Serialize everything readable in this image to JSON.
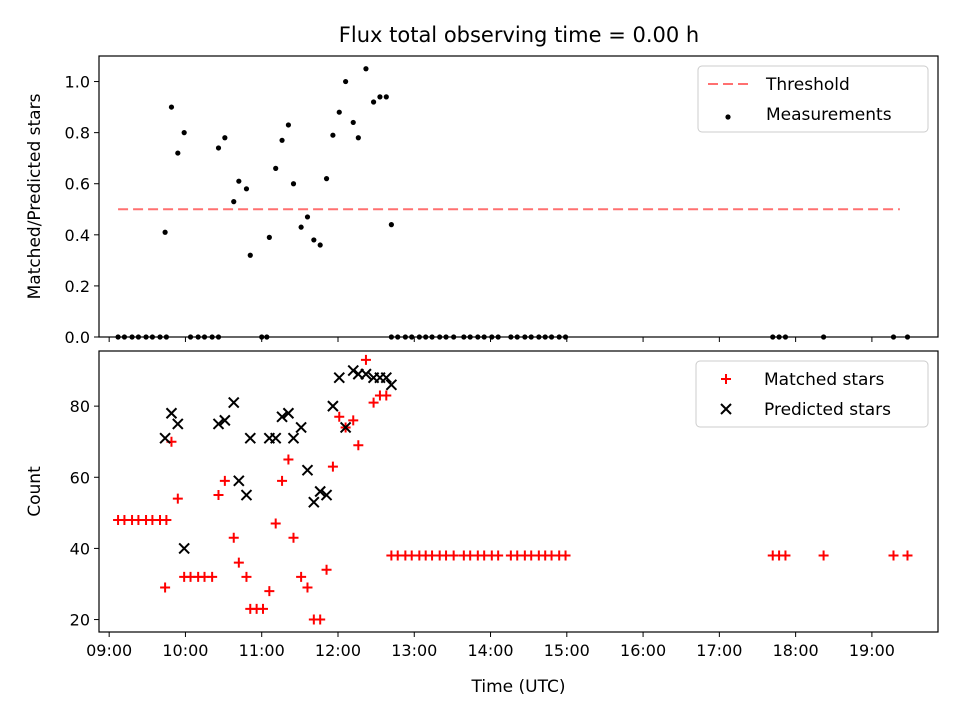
{
  "chart_data": [
    {
      "type": "scatter",
      "title": "Flux total observing time = 0.00 h",
      "xlabel": "",
      "ylabel": "Matched/Predicted stars",
      "xlim": [
        "08:52",
        "19:52"
      ],
      "ylim": [
        0,
        1.1
      ],
      "yticks": [
        "0.0",
        "0.2",
        "0.4",
        "0.6",
        "0.8",
        "1.0"
      ],
      "xtick_labels_visible": false,
      "grid": false,
      "legend_position": "top-right",
      "legend": [
        {
          "label": "Threshold",
          "marker": "dashed-line",
          "color": "#ff7070"
        },
        {
          "label": "Measurements",
          "marker": "dot",
          "color": "#000000"
        }
      ],
      "threshold": {
        "name": "Threshold",
        "value": 0.5,
        "x_start": "09:07",
        "x_end": "19:22",
        "color": "#ff7070",
        "style": "dashed"
      },
      "series": [
        {
          "name": "Measurements",
          "color": "#000000",
          "points": [
            [
              "09:07",
              0
            ],
            [
              "09:12",
              0
            ],
            [
              "09:18",
              0
            ],
            [
              "09:23",
              0
            ],
            [
              "09:29",
              0
            ],
            [
              "09:34",
              0
            ],
            [
              "09:40",
              0
            ],
            [
              "09:45",
              0
            ],
            [
              "09:44",
              0.41
            ],
            [
              "09:49",
              0.9
            ],
            [
              "09:54",
              0.72
            ],
            [
              "09:59",
              0.8
            ],
            [
              "10:04",
              0
            ],
            [
              "10:10",
              0
            ],
            [
              "10:15",
              0
            ],
            [
              "10:21",
              0
            ],
            [
              "10:26",
              0
            ],
            [
              "10:26",
              0.74
            ],
            [
              "10:31",
              0.78
            ],
            [
              "10:38",
              0.53
            ],
            [
              "10:42",
              0.61
            ],
            [
              "10:48",
              0.58
            ],
            [
              "10:51",
              0.32
            ],
            [
              "11:00",
              0
            ],
            [
              "11:04",
              0
            ],
            [
              "11:06",
              0.39
            ],
            [
              "11:11",
              0.66
            ],
            [
              "11:16",
              0.77
            ],
            [
              "11:21",
              0.83
            ],
            [
              "11:25",
              0.6
            ],
            [
              "11:31",
              0.43
            ],
            [
              "11:36",
              0.47
            ],
            [
              "11:41",
              0.38
            ],
            [
              "11:46",
              0.36
            ],
            [
              "11:51",
              0.62
            ],
            [
              "11:56",
              0.79
            ],
            [
              "12:01",
              0.88
            ],
            [
              "12:06",
              1.0
            ],
            [
              "12:12",
              0.84
            ],
            [
              "12:16",
              0.78
            ],
            [
              "12:22",
              1.05
            ],
            [
              "12:28",
              0.92
            ],
            [
              "12:33",
              0.94
            ],
            [
              "12:38",
              0.94
            ],
            [
              "12:42",
              0.44
            ],
            [
              "12:42",
              0
            ],
            [
              "12:47",
              0
            ],
            [
              "12:53",
              0
            ],
            [
              "12:58",
              0
            ],
            [
              "13:04",
              0
            ],
            [
              "13:09",
              0
            ],
            [
              "13:14",
              0
            ],
            [
              "13:20",
              0
            ],
            [
              "13:25",
              0
            ],
            [
              "13:31",
              0
            ],
            [
              "13:39",
              0
            ],
            [
              "13:44",
              0
            ],
            [
              "13:50",
              0
            ],
            [
              "13:55",
              0
            ],
            [
              "14:01",
              0
            ],
            [
              "14:06",
              0
            ],
            [
              "14:16",
              0
            ],
            [
              "14:21",
              0
            ],
            [
              "14:27",
              0
            ],
            [
              "14:32",
              0
            ],
            [
              "14:38",
              0
            ],
            [
              "14:43",
              0
            ],
            [
              "14:48",
              0
            ],
            [
              "14:54",
              0
            ],
            [
              "14:59",
              0
            ],
            [
              "17:42",
              0
            ],
            [
              "17:47",
              0
            ],
            [
              "17:52",
              0
            ],
            [
              "18:22",
              0
            ],
            [
              "19:17",
              0
            ],
            [
              "19:28",
              0
            ]
          ]
        }
      ]
    },
    {
      "type": "scatter",
      "title": "",
      "xlabel": "Time (UTC)",
      "ylabel": "Count",
      "xlim": [
        "08:52",
        "19:52"
      ],
      "ylim": [
        16.5,
        95.5
      ],
      "xticks": [
        "09:00",
        "10:00",
        "11:00",
        "12:00",
        "13:00",
        "14:00",
        "15:00",
        "16:00",
        "17:00",
        "18:00",
        "19:00"
      ],
      "yticks": [
        "20",
        "40",
        "60",
        "80"
      ],
      "grid": false,
      "legend_position": "top-right",
      "legend": [
        {
          "label": "Matched stars",
          "marker": "plus",
          "color": "#ff0000"
        },
        {
          "label": "Predicted stars",
          "marker": "x",
          "color": "#000000"
        }
      ],
      "series": [
        {
          "name": "Matched stars",
          "color": "#ff0000",
          "marker": "plus",
          "points": [
            [
              "09:07",
              48
            ],
            [
              "09:12",
              48
            ],
            [
              "09:18",
              48
            ],
            [
              "09:23",
              48
            ],
            [
              "09:29",
              48
            ],
            [
              "09:34",
              48
            ],
            [
              "09:40",
              48
            ],
            [
              "09:45",
              48
            ],
            [
              "09:44",
              29
            ],
            [
              "09:49",
              70
            ],
            [
              "09:54",
              54
            ],
            [
              "09:59",
              32
            ],
            [
              "10:04",
              32
            ],
            [
              "10:10",
              32
            ],
            [
              "10:15",
              32
            ],
            [
              "10:21",
              32
            ],
            [
              "10:26",
              55
            ],
            [
              "10:31",
              59
            ],
            [
              "10:38",
              43
            ],
            [
              "10:42",
              36
            ],
            [
              "10:48",
              32
            ],
            [
              "10:51",
              23
            ],
            [
              "10:56",
              23
            ],
            [
              "11:01",
              23
            ],
            [
              "11:06",
              28
            ],
            [
              "11:11",
              47
            ],
            [
              "11:16",
              59
            ],
            [
              "11:21",
              65
            ],
            [
              "11:25",
              43
            ],
            [
              "11:31",
              32
            ],
            [
              "11:36",
              29
            ],
            [
              "11:41",
              20
            ],
            [
              "11:46",
              20
            ],
            [
              "11:51",
              34
            ],
            [
              "11:56",
              63
            ],
            [
              "12:01",
              77
            ],
            [
              "12:06",
              74
            ],
            [
              "12:12",
              76
            ],
            [
              "12:16",
              69
            ],
            [
              "12:22",
              93
            ],
            [
              "12:28",
              81
            ],
            [
              "12:33",
              83
            ],
            [
              "12:38",
              83
            ],
            [
              "12:42",
              38
            ],
            [
              "12:47",
              38
            ],
            [
              "12:53",
              38
            ],
            [
              "12:58",
              38
            ],
            [
              "13:04",
              38
            ],
            [
              "13:09",
              38
            ],
            [
              "13:14",
              38
            ],
            [
              "13:20",
              38
            ],
            [
              "13:25",
              38
            ],
            [
              "13:31",
              38
            ],
            [
              "13:39",
              38
            ],
            [
              "13:44",
              38
            ],
            [
              "13:50",
              38
            ],
            [
              "13:55",
              38
            ],
            [
              "14:01",
              38
            ],
            [
              "14:06",
              38
            ],
            [
              "14:16",
              38
            ],
            [
              "14:21",
              38
            ],
            [
              "14:27",
              38
            ],
            [
              "14:32",
              38
            ],
            [
              "14:38",
              38
            ],
            [
              "14:43",
              38
            ],
            [
              "14:48",
              38
            ],
            [
              "14:54",
              38
            ],
            [
              "14:59",
              38
            ],
            [
              "17:42",
              38
            ],
            [
              "17:47",
              38
            ],
            [
              "17:52",
              38
            ],
            [
              "18:22",
              38
            ],
            [
              "19:17",
              38
            ],
            [
              "19:28",
              38
            ]
          ]
        },
        {
          "name": "Predicted stars",
          "color": "#000000",
          "marker": "x",
          "points": [
            [
              "09:44",
              71
            ],
            [
              "09:49",
              78
            ],
            [
              "09:54",
              75
            ],
            [
              "09:59",
              40
            ],
            [
              "10:26",
              75
            ],
            [
              "10:31",
              76
            ],
            [
              "10:38",
              81
            ],
            [
              "10:42",
              59
            ],
            [
              "10:48",
              55
            ],
            [
              "10:51",
              71
            ],
            [
              "11:06",
              71
            ],
            [
              "11:11",
              71
            ],
            [
              "11:16",
              77
            ],
            [
              "11:21",
              78
            ],
            [
              "11:25",
              71
            ],
            [
              "11:31",
              74
            ],
            [
              "11:36",
              62
            ],
            [
              "11:41",
              53
            ],
            [
              "11:46",
              56
            ],
            [
              "11:51",
              55
            ],
            [
              "11:56",
              80
            ],
            [
              "12:01",
              88
            ],
            [
              "12:06",
              74
            ],
            [
              "12:12",
              90
            ],
            [
              "12:16",
              89
            ],
            [
              "12:22",
              89
            ],
            [
              "12:28",
              88
            ],
            [
              "12:33",
              88
            ],
            [
              "12:38",
              88
            ],
            [
              "12:42",
              86
            ]
          ]
        }
      ]
    }
  ]
}
